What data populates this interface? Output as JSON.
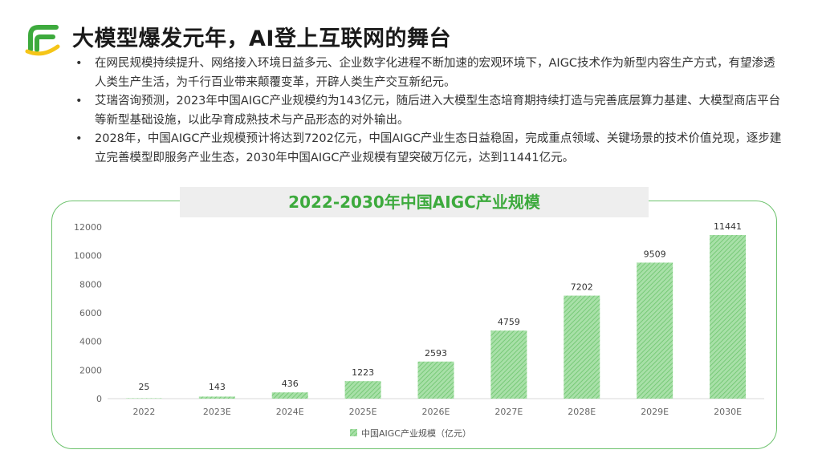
{
  "header": {
    "title": "大模型爆发元年，AI登上互联网的舞台"
  },
  "bullets": [
    "在网民规模持续提升、网络接入环境日益多元、企业数字化进程不断加速的宏观环境下，AIGC技术作为新型内容生产方式，有望渗透人类生产生活，为千行百业带来颠覆变革，开辟人类生产交互新纪元。",
    "艾瑞咨询预测，2023年中国AIGC产业规模约为143亿元，随后进入大模型生态培育期持续打造与完善底层算力基建、大模型商店平台等新型基础设施，以此孕育成熟技术与产品形态的对外输出。",
    "2028年，中国AIGC产业规模预计将达到7202亿元，中国AIGC产业生态日益稳固，完成重点领域、关键场景的技术价值兑现，逐步建立完善模型即服务产业生态，2030年中国AIGC产业规模有望突破万亿元，达到11441亿元。"
  ],
  "bullet_symbol": "•",
  "colors": {
    "accent": "#3daa3d",
    "bar": "#7fd07f",
    "border": "#6cc26c"
  },
  "chart_data": {
    "type": "bar",
    "title": "2022-2030年中国AIGC产业规模",
    "categories": [
      "2022",
      "2023E",
      "2024E",
      "2025E",
      "2026E",
      "2027E",
      "2028E",
      "2029E",
      "2030E"
    ],
    "series": [
      {
        "name": "中国AIGC产业规模（亿元）",
        "values": [
          25,
          143,
          436,
          1223,
          2593,
          4759,
          7202,
          9509,
          11441
        ]
      }
    ],
    "yticks": [
      "0",
      "2000",
      "4000",
      "6000",
      "8000",
      "10000",
      "12000"
    ],
    "ylim": [
      0,
      12000
    ],
    "grid": false,
    "legend_position": "bottom-center",
    "xlabel": "",
    "ylabel": ""
  }
}
